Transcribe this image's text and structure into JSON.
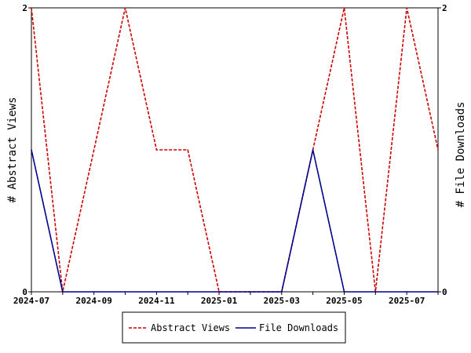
{
  "chart_data": {
    "type": "line",
    "x": [
      "2024-07",
      "2024-08",
      "2024-09",
      "2024-10",
      "2024-11",
      "2024-12",
      "2025-01",
      "2025-02",
      "2025-03",
      "2025-04",
      "2025-05",
      "2025-06",
      "2025-07",
      "2025-08"
    ],
    "x_tick_labels": [
      "2024-07",
      "2024-09",
      "2024-11",
      "2025-01",
      "2025-03",
      "2025-05",
      "2025-07"
    ],
    "series": [
      {
        "name": "Abstract Views",
        "values": [
          2,
          0,
          1,
          2,
          1,
          1,
          0,
          0,
          0,
          1,
          2,
          0,
          2,
          1
        ],
        "color": "#cc0000",
        "style": "dashed",
        "axis": "left"
      },
      {
        "name": "File Downloads",
        "values": [
          1,
          0,
          0,
          0,
          0,
          0,
          0,
          0,
          0,
          1,
          0,
          0,
          0,
          0
        ],
        "color": "#00008b",
        "style": "solid",
        "axis": "right"
      }
    ],
    "ylabel": "# Abstract Views",
    "y2label": "# File Downloads",
    "ylim": [
      0,
      2
    ],
    "y2lim": [
      0,
      2
    ],
    "y_ticks": [
      "0",
      "2"
    ],
    "y2_ticks": [
      "0",
      "2"
    ],
    "grid": false,
    "legend_position": "bottom"
  }
}
